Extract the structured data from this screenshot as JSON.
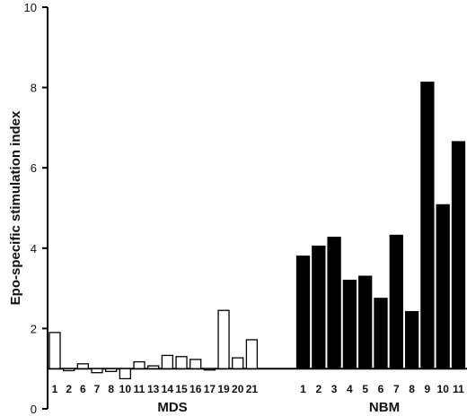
{
  "chart_data": {
    "type": "bar",
    "ylabel": "Epo-specific stimulation index",
    "xlabel": "",
    "ylim": [
      0,
      10
    ],
    "yticks": [
      "0",
      "2",
      "4",
      "6",
      "8",
      "10"
    ],
    "baseline": 1,
    "grid": false,
    "legend": "none",
    "groups": [
      {
        "name": "MDS",
        "fill": "#ffffff",
        "categories": [
          "1",
          "2",
          "6",
          "7",
          "8",
          "10",
          "11",
          "13",
          "14",
          "15",
          "16",
          "17",
          "19",
          "20",
          "21"
        ],
        "values": [
          1.9,
          0.95,
          1.12,
          0.9,
          0.93,
          0.75,
          1.17,
          1.07,
          1.33,
          1.3,
          1.23,
          0.98,
          2.45,
          1.27,
          1.72
        ]
      },
      {
        "name": "NBM",
        "fill": "#000000",
        "categories": [
          "1",
          "2",
          "3",
          "4",
          "5",
          "6",
          "7",
          "8",
          "9",
          "10",
          "11"
        ],
        "values": [
          3.8,
          4.05,
          4.27,
          3.2,
          3.3,
          2.75,
          4.32,
          2.42,
          8.13,
          5.08,
          6.65
        ]
      }
    ]
  }
}
